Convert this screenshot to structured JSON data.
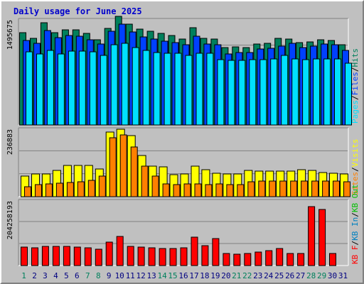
{
  "colors": {
    "background": "#c0c0c0",
    "title": "#0000cc",
    "hits": "#00805c",
    "files": "#0040ff",
    "pages": "#00e0ff",
    "visits": "#ffff00",
    "sites": "#ff8000",
    "kbytes": "#ff0000",
    "kb_in": "#0080c0",
    "kb_out": "#00c000",
    "weekend_day": "#00805c",
    "weekday": "#000080"
  },
  "chart_data": {
    "type": "bar",
    "title": "Daily usage for June 2025",
    "days": [
      "1",
      "2",
      "3",
      "4",
      "5",
      "6",
      "7",
      "8",
      "9",
      "10",
      "11",
      "12",
      "13",
      "14",
      "15",
      "16",
      "17",
      "18",
      "19",
      "20",
      "21",
      "22",
      "23",
      "24",
      "25",
      "26",
      "27",
      "28",
      "29",
      "30",
      "31"
    ],
    "weekend_days": [
      "1",
      "7",
      "8",
      "14",
      "15",
      "21",
      "22",
      "28",
      "29"
    ],
    "grid": true,
    "panels": [
      {
        "id": "traffic",
        "ymax_label": "1495675",
        "ymax": 1495675,
        "legend": [
          {
            "label": "Pages",
            "color": "#00e0ff"
          },
          {
            "label": "/",
            "color": "#000000"
          },
          {
            "label": "Files",
            "color": "#0040ff"
          },
          {
            "label": "/",
            "color": "#000000"
          },
          {
            "label": "Hits",
            "color": "#00805c"
          }
        ],
        "series": [
          {
            "name": "Hits",
            "color": "#00805c",
            "values": [
              1310000,
              1235000,
              1455000,
              1310000,
              1350000,
              1350000,
              1300000,
              1215000,
              1375000,
              1550000,
              1430000,
              1365000,
              1330000,
              1305000,
              1275000,
              1220000,
              1385000,
              1235000,
              1225000,
              1100000,
              1110000,
              1105000,
              1150000,
              1165000,
              1230000,
              1220000,
              1170000,
              1185000,
              1215000,
              1205000,
              1140000
            ]
          },
          {
            "name": "Files",
            "color": "#0040ff",
            "values": [
              1200000,
              1160000,
              1340000,
              1240000,
              1270000,
              1265000,
              1210000,
              1155000,
              1330000,
              1440000,
              1320000,
              1255000,
              1225000,
              1195000,
              1175000,
              1140000,
              1260000,
              1150000,
              1140000,
              1010000,
              1030000,
              1030000,
              1080000,
              1095000,
              1125000,
              1165000,
              1100000,
              1120000,
              1155000,
              1140000,
              1060000
            ]
          },
          {
            "name": "Pages",
            "color": "#00e0ff",
            "values": [
              1040000,
              1010000,
              1060000,
              1015000,
              1055000,
              1050000,
              1045000,
              995000,
              1140000,
              1160000,
              1105000,
              1060000,
              1035000,
              1020000,
              1020000,
              990000,
              1020000,
              1020000,
              930000,
              915000,
              915000,
              930000,
              930000,
              940000,
              995000,
              935000,
              930000,
              940000,
              940000,
              935000,
              875000
            ]
          }
        ]
      },
      {
        "id": "visits",
        "ymax_label": "236883",
        "ymax": 236883,
        "legend": [
          {
            "label": "Sites",
            "color": "#ff8000"
          },
          {
            "label": "/",
            "color": "#000000"
          },
          {
            "label": "Visits",
            "color": "#ffff00"
          }
        ],
        "series": [
          {
            "name": "Visits",
            "color": "#ffff00",
            "values": [
              72000,
              80000,
              80000,
              92000,
              109000,
              109000,
              109000,
              96000,
              228000,
              236000,
              215000,
              145000,
              108000,
              104000,
              77000,
              80000,
              107000,
              95000,
              82000,
              79000,
              81000,
              92000,
              91000,
              91000,
              91000,
              90000,
              95000,
              92000,
              85000,
              82000,
              80000
            ]
          },
          {
            "name": "Sites",
            "color": "#ff8000",
            "values": [
              36000,
              42000,
              46000,
              48000,
              50000,
              52000,
              58000,
              72000,
              208000,
              216000,
              175000,
              107000,
              73000,
              44000,
              42000,
              44000,
              44000,
              42000,
              44000,
              42000,
              43000,
              52000,
              55000,
              55000,
              55000,
              55000,
              55000,
              55000,
              55000,
              54000,
              53000
            ]
          }
        ]
      },
      {
        "id": "kbytes",
        "ymax_label": "204258193",
        "ymax": 204258193,
        "legend": [
          {
            "label": "KB F",
            "color": "#ff0000"
          },
          {
            "label": "/",
            "color": "#000000"
          },
          {
            "label": "KB In",
            "color": "#0080c0"
          },
          {
            "label": "/",
            "color": "#000000"
          },
          {
            "label": "KB Out",
            "color": "#00c000"
          }
        ],
        "series": [
          {
            "name": "KB F",
            "color": "#ff0000",
            "values": [
              59000000,
              56000000,
              61000000,
              61000000,
              61000000,
              59000000,
              56000000,
              51000000,
              75000000,
              92000000,
              61000000,
              58000000,
              56000000,
              53000000,
              53000000,
              56000000,
              89000000,
              62000000,
              86000000,
              38000000,
              37000000,
              38000000,
              43000000,
              48000000,
              53000000,
              38000000,
              38000000,
              187000000,
              177000000,
              38000000,
              0
            ]
          }
        ]
      }
    ]
  }
}
